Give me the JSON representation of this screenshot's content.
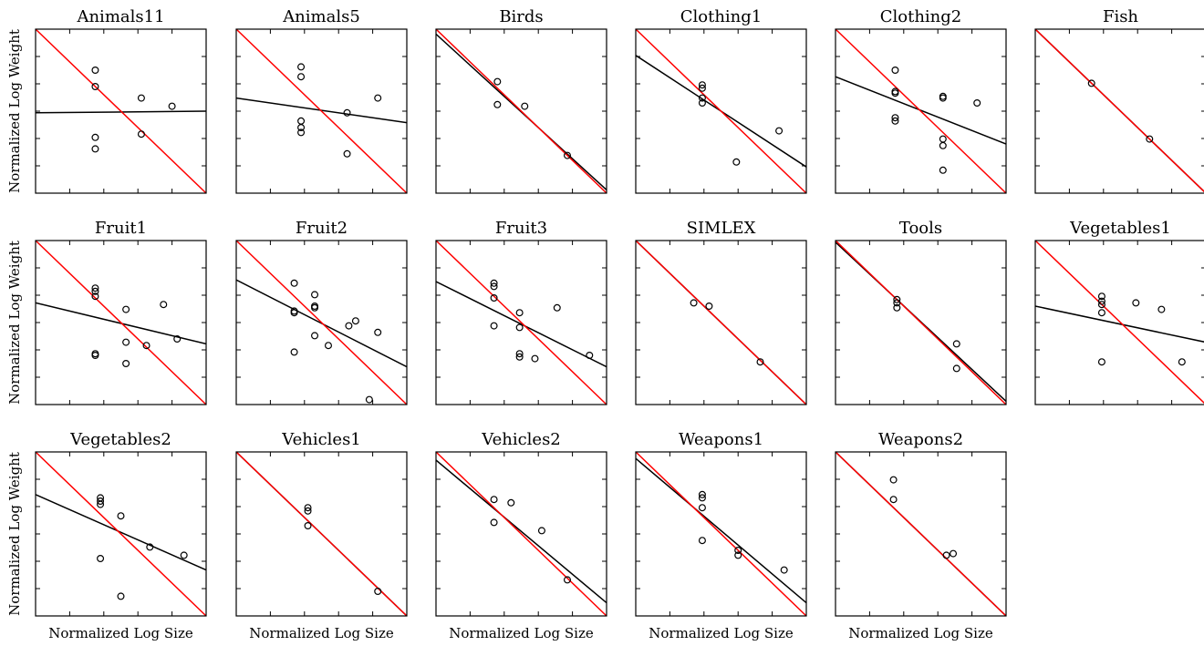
{
  "figure": {
    "xlabel": "Normalized Log Size",
    "ylabel": "Normalized Log Weight"
  },
  "chart_data": [
    {
      "type": "scatter",
      "title": "Animals11",
      "xlim": [
        0,
        1
      ],
      "ylim": [
        0,
        1
      ],
      "points": [
        [
          0.35,
          0.75
        ],
        [
          0.35,
          0.65
        ],
        [
          0.35,
          0.34
        ],
        [
          0.35,
          0.27
        ],
        [
          0.62,
          0.58
        ],
        [
          0.62,
          0.36
        ],
        [
          0.8,
          0.53
        ]
      ],
      "series": [
        {
          "name": "",
          "color": "#000000",
          "line": [
            [
              0,
              0.49
            ],
            [
              1,
              0.5
            ]
          ]
        },
        {
          "name": "",
          "color": "#ff0000",
          "line": [
            [
              0,
              1
            ],
            [
              1,
              0
            ]
          ]
        }
      ]
    },
    {
      "type": "scatter",
      "title": "Animals5",
      "xlim": [
        0,
        1
      ],
      "ylim": [
        0,
        1
      ],
      "points": [
        [
          0.38,
          0.77
        ],
        [
          0.38,
          0.71
        ],
        [
          0.38,
          0.44
        ],
        [
          0.38,
          0.4
        ],
        [
          0.38,
          0.37
        ],
        [
          0.65,
          0.49
        ],
        [
          0.65,
          0.24
        ],
        [
          0.83,
          0.58
        ]
      ],
      "series": [
        {
          "name": "",
          "color": "#000000",
          "line": [
            [
              0,
              0.58
            ],
            [
              1,
              0.43
            ]
          ]
        },
        {
          "name": "",
          "color": "#ff0000",
          "line": [
            [
              0,
              1
            ],
            [
              1,
              0
            ]
          ]
        }
      ]
    },
    {
      "type": "scatter",
      "title": "Birds",
      "xlim": [
        0,
        1
      ],
      "ylim": [
        0,
        1
      ],
      "points": [
        [
          0.36,
          0.68
        ],
        [
          0.36,
          0.54
        ],
        [
          0.52,
          0.53
        ],
        [
          0.77,
          0.23
        ]
      ],
      "series": [
        {
          "name": "",
          "color": "#000000",
          "line": [
            [
              0,
              0.97
            ],
            [
              1,
              0.02
            ]
          ]
        },
        {
          "name": "",
          "color": "#ff0000",
          "line": [
            [
              0,
              1
            ],
            [
              1,
              0
            ]
          ]
        }
      ]
    },
    {
      "type": "scatter",
      "title": "Clothing1",
      "xlim": [
        0,
        1
      ],
      "ylim": [
        0,
        1
      ],
      "points": [
        [
          0.39,
          0.66
        ],
        [
          0.39,
          0.64
        ],
        [
          0.39,
          0.58
        ],
        [
          0.39,
          0.55
        ],
        [
          0.59,
          0.19
        ],
        [
          0.84,
          0.38
        ]
      ],
      "series": [
        {
          "name": "",
          "color": "#000000",
          "line": [
            [
              0,
              0.84
            ],
            [
              1,
              0.16
            ]
          ]
        },
        {
          "name": "",
          "color": "#ff0000",
          "line": [
            [
              0,
              1
            ],
            [
              1,
              0
            ]
          ]
        }
      ]
    },
    {
      "type": "scatter",
      "title": "Clothing2",
      "xlim": [
        0,
        1
      ],
      "ylim": [
        0,
        1
      ],
      "points": [
        [
          0.35,
          0.75
        ],
        [
          0.35,
          0.62
        ],
        [
          0.35,
          0.61
        ],
        [
          0.35,
          0.46
        ],
        [
          0.35,
          0.44
        ],
        [
          0.63,
          0.59
        ],
        [
          0.63,
          0.58
        ],
        [
          0.63,
          0.33
        ],
        [
          0.63,
          0.29
        ],
        [
          0.63,
          0.14
        ],
        [
          0.83,
          0.55
        ]
      ],
      "series": [
        {
          "name": "",
          "color": "#000000",
          "line": [
            [
              0,
              0.71
            ],
            [
              1,
              0.3
            ]
          ]
        },
        {
          "name": "",
          "color": "#ff0000",
          "line": [
            [
              0,
              1
            ],
            [
              1,
              0
            ]
          ]
        }
      ]
    },
    {
      "type": "scatter",
      "title": "Fish",
      "xlim": [
        0,
        1
      ],
      "ylim": [
        0,
        1
      ],
      "points": [
        [
          0.33,
          0.67
        ],
        [
          0.67,
          0.33
        ]
      ],
      "series": [
        {
          "name": "",
          "color": "#000000",
          "line": [
            [
              0,
              1
            ],
            [
              1,
              0
            ]
          ]
        },
        {
          "name": "",
          "color": "#ff0000",
          "line": [
            [
              0,
              1
            ],
            [
              1,
              0
            ]
          ]
        }
      ]
    },
    {
      "type": "scatter",
      "title": "Fruit1",
      "xlim": [
        0,
        1
      ],
      "ylim": [
        0,
        1
      ],
      "points": [
        [
          0.35,
          0.71
        ],
        [
          0.35,
          0.69
        ],
        [
          0.35,
          0.66
        ],
        [
          0.35,
          0.31
        ],
        [
          0.35,
          0.3
        ],
        [
          0.53,
          0.58
        ],
        [
          0.53,
          0.38
        ],
        [
          0.53,
          0.25
        ],
        [
          0.65,
          0.36
        ],
        [
          0.75,
          0.61
        ],
        [
          0.83,
          0.4
        ]
      ],
      "series": [
        {
          "name": "",
          "color": "#000000",
          "line": [
            [
              0,
              0.62
            ],
            [
              1,
              0.37
            ]
          ]
        },
        {
          "name": "",
          "color": "#ff0000",
          "line": [
            [
              0,
              1
            ],
            [
              1,
              0
            ]
          ]
        }
      ]
    },
    {
      "type": "scatter",
      "title": "Fruit2",
      "xlim": [
        0,
        1
      ],
      "ylim": [
        0,
        1
      ],
      "points": [
        [
          0.34,
          0.74
        ],
        [
          0.34,
          0.57
        ],
        [
          0.34,
          0.56
        ],
        [
          0.34,
          0.32
        ],
        [
          0.46,
          0.67
        ],
        [
          0.46,
          0.6
        ],
        [
          0.46,
          0.59
        ],
        [
          0.46,
          0.42
        ],
        [
          0.54,
          0.36
        ],
        [
          0.66,
          0.48
        ],
        [
          0.7,
          0.51
        ],
        [
          0.78,
          0.03
        ],
        [
          0.83,
          0.44
        ]
      ],
      "series": [
        {
          "name": "",
          "color": "#000000",
          "line": [
            [
              0,
              0.76
            ],
            [
              1,
              0.23
            ]
          ]
        },
        {
          "name": "",
          "color": "#ff0000",
          "line": [
            [
              0,
              1
            ],
            [
              1,
              0
            ]
          ]
        }
      ]
    },
    {
      "type": "scatter",
      "title": "Fruit3",
      "xlim": [
        0,
        1
      ],
      "ylim": [
        0,
        1
      ],
      "points": [
        [
          0.34,
          0.74
        ],
        [
          0.34,
          0.72
        ],
        [
          0.34,
          0.65
        ],
        [
          0.34,
          0.48
        ],
        [
          0.49,
          0.56
        ],
        [
          0.49,
          0.47
        ],
        [
          0.49,
          0.31
        ],
        [
          0.49,
          0.29
        ],
        [
          0.58,
          0.28
        ],
        [
          0.71,
          0.59
        ],
        [
          0.9,
          0.3
        ]
      ],
      "series": [
        {
          "name": "",
          "color": "#000000",
          "line": [
            [
              0,
              0.75
            ],
            [
              1,
              0.23
            ]
          ]
        },
        {
          "name": "",
          "color": "#ff0000",
          "line": [
            [
              0,
              1
            ],
            [
              1,
              0
            ]
          ]
        }
      ]
    },
    {
      "type": "scatter",
      "title": "SIMLEX",
      "xlim": [
        0,
        1
      ],
      "ylim": [
        0,
        1
      ],
      "points": [
        [
          0.34,
          0.62
        ],
        [
          0.43,
          0.6
        ],
        [
          0.73,
          0.26
        ]
      ],
      "series": [
        {
          "name": "",
          "color": "#000000",
          "line": [
            [
              0,
              1
            ],
            [
              1,
              0
            ]
          ]
        },
        {
          "name": "",
          "color": "#ff0000",
          "line": [
            [
              0,
              1
            ],
            [
              1,
              0
            ]
          ]
        }
      ]
    },
    {
      "type": "scatter",
      "title": "Tools",
      "xlim": [
        0,
        1
      ],
      "ylim": [
        0,
        1
      ],
      "points": [
        [
          0.36,
          0.64
        ],
        [
          0.36,
          0.62
        ],
        [
          0.36,
          0.59
        ],
        [
          0.71,
          0.37
        ],
        [
          0.71,
          0.22
        ]
      ],
      "series": [
        {
          "name": "",
          "color": "#000000",
          "line": [
            [
              0,
              0.99
            ],
            [
              1,
              0.02
            ]
          ]
        },
        {
          "name": "",
          "color": "#ff0000",
          "line": [
            [
              0,
              1
            ],
            [
              1,
              0
            ]
          ]
        }
      ]
    },
    {
      "type": "scatter",
      "title": "Vegetables1",
      "xlim": [
        0,
        1
      ],
      "ylim": [
        0,
        1
      ],
      "points": [
        [
          0.39,
          0.66
        ],
        [
          0.39,
          0.63
        ],
        [
          0.39,
          0.61
        ],
        [
          0.39,
          0.56
        ],
        [
          0.39,
          0.26
        ],
        [
          0.59,
          0.62
        ],
        [
          0.74,
          0.58
        ],
        [
          0.86,
          0.26
        ]
      ],
      "series": [
        {
          "name": "",
          "color": "#000000",
          "line": [
            [
              0,
              0.6
            ],
            [
              1,
              0.38
            ]
          ]
        },
        {
          "name": "",
          "color": "#ff0000",
          "line": [
            [
              0,
              1
            ],
            [
              1,
              0
            ]
          ]
        }
      ]
    },
    {
      "type": "scatter",
      "title": "Vegetables2",
      "xlim": [
        0,
        1
      ],
      "ylim": [
        0,
        1
      ],
      "points": [
        [
          0.38,
          0.72
        ],
        [
          0.38,
          0.7
        ],
        [
          0.38,
          0.68
        ],
        [
          0.38,
          0.35
        ],
        [
          0.5,
          0.61
        ],
        [
          0.5,
          0.12
        ],
        [
          0.67,
          0.42
        ],
        [
          0.87,
          0.37
        ]
      ],
      "series": [
        {
          "name": "",
          "color": "#000000",
          "line": [
            [
              0,
              0.74
            ],
            [
              1,
              0.28
            ]
          ]
        },
        {
          "name": "",
          "color": "#ff0000",
          "line": [
            [
              0,
              1
            ],
            [
              1,
              0
            ]
          ]
        }
      ]
    },
    {
      "type": "scatter",
      "title": "Vehicles1",
      "xlim": [
        0,
        1
      ],
      "ylim": [
        0,
        1
      ],
      "points": [
        [
          0.42,
          0.66
        ],
        [
          0.42,
          0.64
        ],
        [
          0.42,
          0.55
        ],
        [
          0.83,
          0.15
        ]
      ],
      "series": [
        {
          "name": "",
          "color": "#000000",
          "line": [
            [
              0,
              1
            ],
            [
              1,
              0
            ]
          ]
        },
        {
          "name": "",
          "color": "#ff0000",
          "line": [
            [
              0,
              1
            ],
            [
              1,
              0
            ]
          ]
        }
      ]
    },
    {
      "type": "scatter",
      "title": "Vehicles2",
      "xlim": [
        0,
        1
      ],
      "ylim": [
        0,
        1
      ],
      "points": [
        [
          0.34,
          0.71
        ],
        [
          0.34,
          0.57
        ],
        [
          0.44,
          0.69
        ],
        [
          0.62,
          0.52
        ],
        [
          0.77,
          0.22
        ]
      ],
      "series": [
        {
          "name": "",
          "color": "#000000",
          "line": [
            [
              0,
              0.95
            ],
            [
              1,
              0.08
            ]
          ]
        },
        {
          "name": "",
          "color": "#ff0000",
          "line": [
            [
              0,
              1
            ],
            [
              1,
              0
            ]
          ]
        }
      ]
    },
    {
      "type": "scatter",
      "title": "Weapons1",
      "xlim": [
        0,
        1
      ],
      "ylim": [
        0,
        1
      ],
      "points": [
        [
          0.39,
          0.74
        ],
        [
          0.39,
          0.72
        ],
        [
          0.39,
          0.66
        ],
        [
          0.39,
          0.46
        ],
        [
          0.6,
          0.4
        ],
        [
          0.6,
          0.37
        ],
        [
          0.87,
          0.28
        ]
      ],
      "series": [
        {
          "name": "",
          "color": "#000000",
          "line": [
            [
              0,
              0.96
            ],
            [
              1,
              0.08
            ]
          ]
        },
        {
          "name": "",
          "color": "#ff0000",
          "line": [
            [
              0,
              1
            ],
            [
              1,
              0
            ]
          ]
        }
      ]
    },
    {
      "type": "scatter",
      "title": "Weapons2",
      "xlim": [
        0,
        1
      ],
      "ylim": [
        0,
        1
      ],
      "points": [
        [
          0.34,
          0.83
        ],
        [
          0.34,
          0.71
        ],
        [
          0.65,
          0.37
        ],
        [
          0.69,
          0.38
        ]
      ],
      "series": [
        {
          "name": "",
          "color": "#000000",
          "line": [
            [
              0,
              1
            ],
            [
              1,
              0
            ]
          ]
        },
        {
          "name": "",
          "color": "#ff0000",
          "line": [
            [
              0,
              1
            ],
            [
              1,
              0
            ]
          ]
        }
      ]
    }
  ]
}
